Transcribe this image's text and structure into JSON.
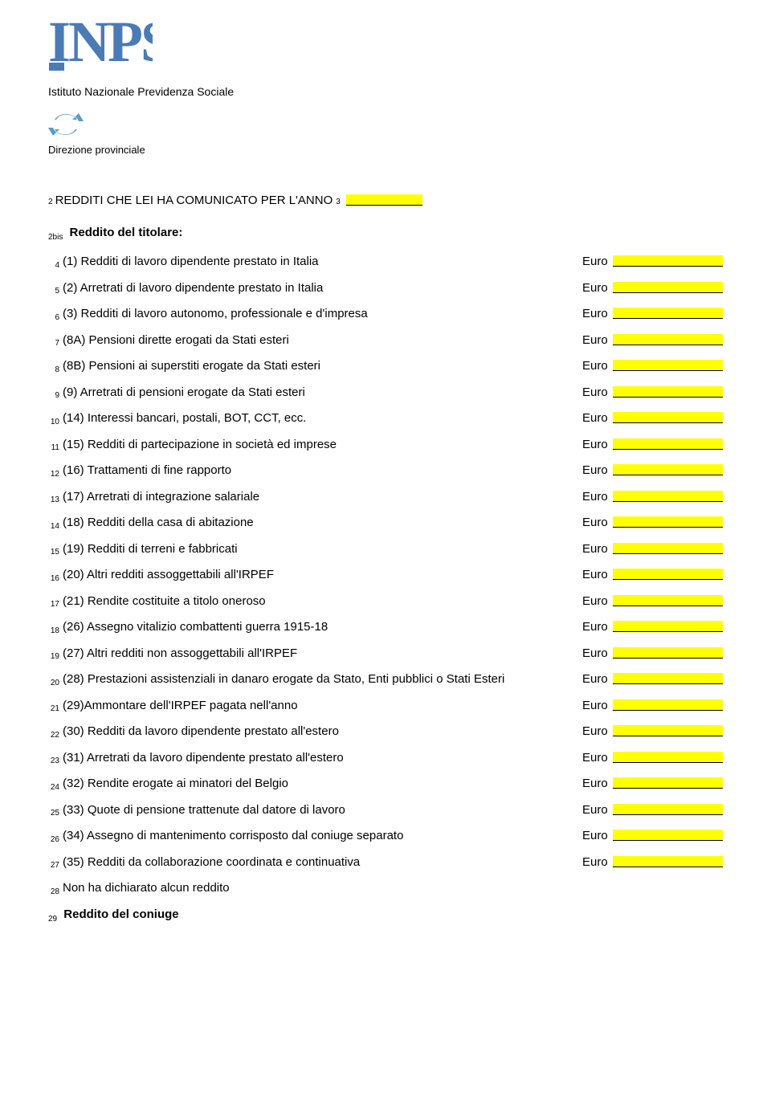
{
  "header": {
    "logo_text": "INPS",
    "subtitle": "Istituto Nazionale Previdenza Sociale",
    "direzione": "Direzione provinciale"
  },
  "title": {
    "prefix_num": "2",
    "text": "REDDITI CHE LEI HA COMUNICATO PER L'ANNO",
    "suffix_num": "3"
  },
  "section_titolare": {
    "num": "2bis",
    "label": "Reddito del titolare:"
  },
  "euro_label": "Euro",
  "rows": [
    {
      "n": "4",
      "label": "(1) Redditi di lavoro dipendente prestato in Italia",
      "has_euro": true
    },
    {
      "n": "5",
      "label": "(2) Arretrati di lavoro dipendente prestato in Italia",
      "has_euro": true
    },
    {
      "n": "6",
      "label": "(3) Redditi di lavoro autonomo, professionale e d'impresa",
      "has_euro": true
    },
    {
      "n": "7",
      "label": "(8A) Pensioni dirette erogati da Stati esteri",
      "has_euro": true
    },
    {
      "n": "8",
      "label": "(8B) Pensioni ai superstiti erogate da Stati esteri",
      "has_euro": true
    },
    {
      "n": "9",
      "label": "(9) Arretrati di pensioni erogate da Stati esteri",
      "has_euro": true
    },
    {
      "n": "10",
      "label": "(14) Interessi bancari, postali, BOT, CCT, ecc.",
      "has_euro": true
    },
    {
      "n": "11",
      "label": "(15) Redditi di partecipazione in società ed imprese",
      "has_euro": true
    },
    {
      "n": "12",
      "label": "(16) Trattamenti di fine rapporto",
      "has_euro": true
    },
    {
      "n": "13",
      "label": "(17) Arretrati di integrazione salariale",
      "has_euro": true
    },
    {
      "n": "14",
      "label": "(18) Redditi della casa di abitazione",
      "has_euro": true
    },
    {
      "n": "15",
      "label": "(19) Redditi di terreni e fabbricati",
      "has_euro": true
    },
    {
      "n": "16",
      "label": "(20) Altri redditi assoggettabili all'IRPEF",
      "has_euro": true
    },
    {
      "n": "17",
      "label": "(21) Rendite costituite a titolo oneroso",
      "has_euro": true
    },
    {
      "n": "18",
      "label": "(26) Assegno vitalizio combattenti guerra 1915-18",
      "has_euro": true
    },
    {
      "n": "19",
      "label": "(27) Altri redditi non assoggettabili all'IRPEF",
      "has_euro": true
    },
    {
      "n": "20",
      "label": "(28) Prestazioni assistenziali in danaro erogate da Stato, Enti pubblici o Stati Esteri",
      "has_euro": true
    },
    {
      "n": "21",
      "label": "(29)Ammontare dell'IRPEF pagata nell'anno",
      "has_euro": true
    },
    {
      "n": "22",
      "label": "(30) Redditi da lavoro dipendente prestato all'estero",
      "has_euro": true
    },
    {
      "n": "23",
      "label": "(31) Arretrati da lavoro dipendente prestato all'estero",
      "has_euro": true
    },
    {
      "n": "24",
      "label": "(32) Rendite erogate ai minatori del Belgio",
      "has_euro": true
    },
    {
      "n": "25",
      "label": "(33) Quote di pensione trattenute dal datore di lavoro",
      "has_euro": true
    },
    {
      "n": "26",
      "label": "(34) Assegno di mantenimento corrisposto dal coniuge separato",
      "has_euro": true
    },
    {
      "n": "27",
      "label": "(35) Redditi da collaborazione coordinata e continuativa",
      "has_euro": true
    },
    {
      "n": "28",
      "label": "Non ha dichiarato alcun reddito",
      "has_euro": false
    }
  ],
  "section_coniuge": {
    "num": "29",
    "label": "Reddito del coniuge"
  },
  "colors": {
    "highlight": "#ffff00",
    "logo": "#4a7bb5",
    "text": "#000000",
    "background": "#ffffff"
  }
}
